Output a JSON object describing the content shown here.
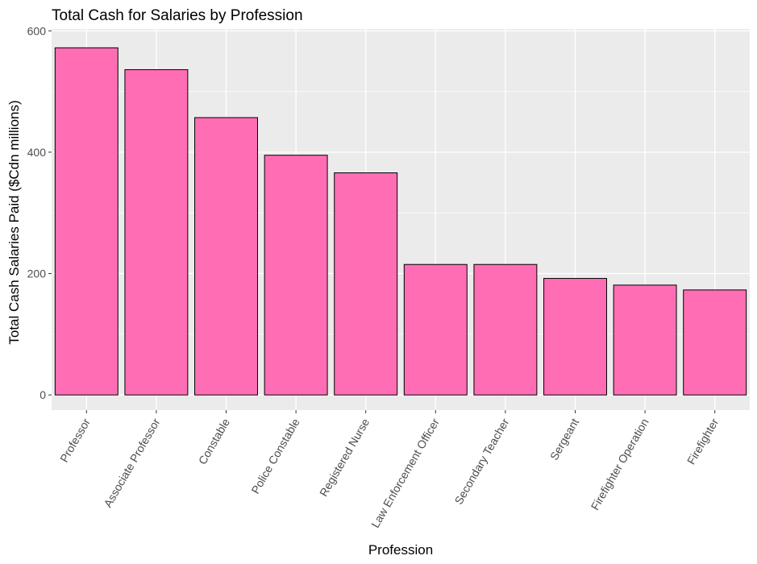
{
  "chart_data": {
    "type": "bar",
    "title": "Total Cash for Salaries by Profession",
    "xlabel": "Profession",
    "ylabel": "Total Cash Salaries Paid ($Cdn millions)",
    "categories": [
      "Professor",
      "Associate Professor",
      "Constable",
      "Police Constable",
      "Registered Nurse",
      "Law Enforcement Officer",
      "Secondary Teacher",
      "Sergeant",
      "Firefighter Operation",
      "Firefighter"
    ],
    "values": [
      572,
      536,
      457,
      395,
      366,
      215,
      215,
      192,
      181,
      173
    ],
    "ylim": [
      -25,
      603
    ],
    "yticks": [
      0,
      200,
      400,
      600
    ],
    "ytick_labels": [
      "0",
      "200",
      "400",
      "600"
    ],
    "grid": true,
    "legend": "none",
    "colors": {
      "bar_fill": "#FF6EB4",
      "bar_stroke": "#000000",
      "panel_background": "#EBEBEB",
      "grid_major": "#FFFFFF",
      "axis_text": "#4D4D4D",
      "title_text": "#000000"
    }
  }
}
